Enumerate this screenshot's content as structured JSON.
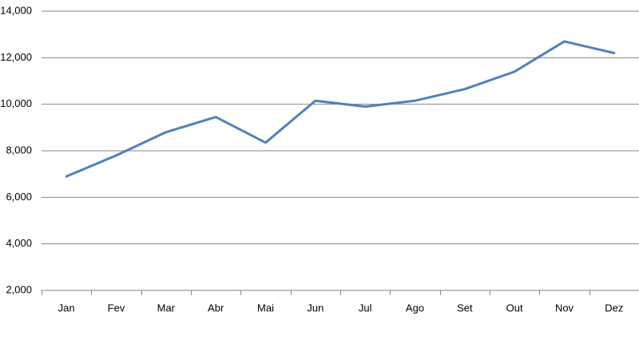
{
  "chart_data": {
    "type": "line",
    "categories": [
      "Jan",
      "Fev",
      "Mar",
      "Abr",
      "Mai",
      "Jun",
      "Jul",
      "Ago",
      "Set",
      "Out",
      "Nov",
      "Dez"
    ],
    "values": [
      6900,
      7800,
      8800,
      9450,
      8350,
      10150,
      9900,
      10150,
      10650,
      11400,
      12700,
      12200
    ],
    "color": "#4f81bd",
    "ylim": [
      2000,
      14000
    ],
    "yticks": [
      {
        "value": 2000,
        "label": "2,000"
      },
      {
        "value": 4000,
        "label": "4,000"
      },
      {
        "value": 6000,
        "label": "6,000"
      },
      {
        "value": 8000,
        "label": "8,000"
      },
      {
        "value": 10000,
        "label": "10,000"
      },
      {
        "value": 12000,
        "label": "12,000"
      },
      {
        "value": 14000,
        "label": "14,000"
      }
    ],
    "grid": true
  }
}
